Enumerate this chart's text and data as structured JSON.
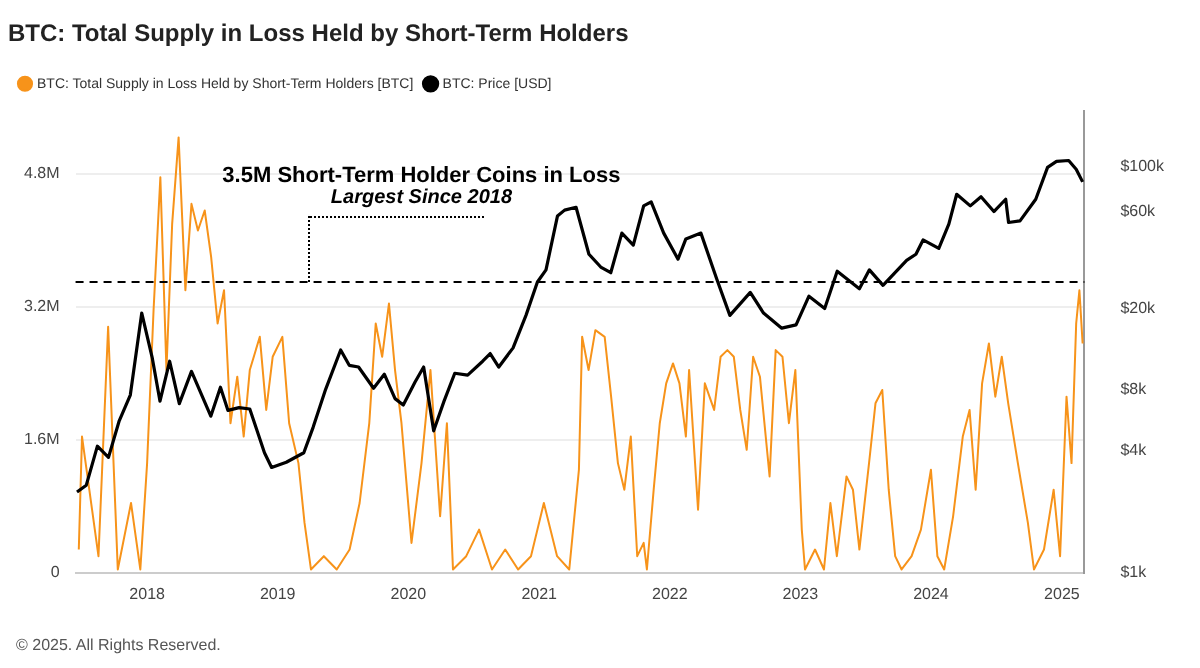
{
  "chart_data": {
    "type": "line",
    "title": "BTC: Total Supply in Loss Held by Short-Term Holders",
    "legend": "top left",
    "grid": "y",
    "log": "y2",
    "marker": "none",
    "line_style": "solid",
    "xlim": [
      "2017-06-15",
      "2025-03-05"
    ],
    "xticks": [
      "2018",
      "2019",
      "2020",
      "2021",
      "2022",
      "2023",
      "2024",
      "2025"
    ],
    "ylim": [
      0,
      5560000
    ],
    "yticks": [
      0,
      {
        "value": 1600000,
        "label": "1.6M"
      },
      {
        "value": 3200000,
        "label": "3.2M"
      },
      {
        "value": 4800000,
        "label": "4.8M"
      }
    ],
    "y2lim": [
      1000,
      188000
    ],
    "y2ticks": [
      {
        "value": 1000,
        "label": "$1k"
      },
      {
        "value": 4000,
        "label": "$4k"
      },
      {
        "value": 8000,
        "label": "$8k"
      },
      {
        "value": 20000,
        "label": "$20k"
      },
      {
        "value": 60000,
        "label": "$60k"
      },
      {
        "value": 100000,
        "label": "$100k"
      }
    ],
    "ref_lines": [
      {
        "axis": "y",
        "value": 3500000,
        "color": "#000000",
        "line_style": "dashed"
      }
    ],
    "annotations": [
      {
        "text": "3.5M Short-Term Holder Coins in Loss",
        "x": "2019-03-25",
        "y": 3500000
      },
      "Largest Since 2018",
      "© 2025. All Rights Reserved."
    ],
    "series": [
      {
        "name": "BTC: Total Supply in Loss Held by Short-Term Holders [BTC]",
        "color": "#f7931a",
        "x": [
          "2017-06-24",
          "2017-07-03",
          "2017-08-18",
          "2017-09-14",
          "2017-10-11",
          "2017-11-17",
          "2017-12-13",
          "2018-01-01",
          "2018-01-19",
          "2018-02-07",
          "2018-02-24",
          "2018-03-12",
          "2018-03-30",
          "2018-04-18",
          "2018-05-05",
          "2018-05-23",
          "2018-06-11",
          "2018-06-29",
          "2018-07-17",
          "2018-08-04",
          "2018-08-22",
          "2018-09-10",
          "2018-09-28",
          "2018-10-15",
          "2018-11-12",
          "2018-11-30",
          "2018-12-18",
          "2019-01-14",
          "2019-02-02",
          "2019-02-28",
          "2019-03-17",
          "2019-04-04",
          "2019-05-10",
          "2019-06-15",
          "2019-07-21",
          "2019-08-18",
          "2019-09-14",
          "2019-10-02",
          "2019-10-20",
          "2019-11-08",
          "2019-11-25",
          "2019-12-13",
          "2020-01-10",
          "2020-02-07",
          "2020-03-03",
          "2020-03-30",
          "2020-04-18",
          "2020-05-05",
          "2020-06-11",
          "2020-07-17",
          "2020-08-22",
          "2020-09-28",
          "2020-11-03",
          "2020-12-09",
          "2021-01-14",
          "2021-02-20",
          "2021-03-26",
          "2021-04-22",
          "2021-05-01",
          "2021-05-19",
          "2021-06-07",
          "2021-07-03",
          "2021-07-21",
          "2021-08-09",
          "2021-08-27",
          "2021-09-14",
          "2021-10-02",
          "2021-10-20",
          "2021-10-29",
          "2021-11-17",
          "2021-12-04",
          "2021-12-22",
          "2022-01-10",
          "2022-01-28",
          "2022-02-15",
          "2022-02-24",
          "2022-03-21",
          "2022-04-09",
          "2022-05-05",
          "2022-05-23",
          "2022-06-11",
          "2022-06-29",
          "2022-07-17",
          "2022-08-04",
          "2022-08-22",
          "2022-09-10",
          "2022-10-07",
          "2022-10-24",
          "2022-11-12",
          "2022-11-30",
          "2022-12-18",
          "2023-01-05",
          "2023-01-14",
          "2023-02-11",
          "2023-03-08",
          "2023-03-26",
          "2023-04-13",
          "2023-05-10",
          "2023-05-28",
          "2023-06-15",
          "2023-07-12",
          "2023-07-30",
          "2023-08-18",
          "2023-09-05",
          "2023-09-23",
          "2023-10-11",
          "2023-11-08",
          "2023-12-04",
          "2024-01-01",
          "2024-01-19",
          "2024-02-07",
          "2024-03-03",
          "2024-03-30",
          "2024-04-18",
          "2024-05-05",
          "2024-05-23",
          "2024-06-11",
          "2024-06-29",
          "2024-07-17",
          "2024-08-04",
          "2024-08-31",
          "2024-09-28",
          "2024-10-15",
          "2024-11-12",
          "2024-12-09",
          "2024-12-27",
          "2025-01-14",
          "2025-01-28",
          "2025-02-10",
          "2025-02-19",
          "2025-02-28"
        ],
        "values": [
          280000,
          1640000,
          200000,
          2960000,
          40000,
          840000,
          40000,
          1320000,
          3160000,
          4760000,
          2440000,
          4200000,
          5240000,
          3400000,
          4440000,
          4120000,
          4360000,
          3800000,
          3000000,
          3400000,
          1800000,
          2360000,
          1640000,
          2440000,
          2840000,
          1960000,
          2600000,
          2840000,
          1800000,
          1320000,
          600000,
          40000,
          200000,
          40000,
          280000,
          840000,
          1800000,
          3000000,
          2600000,
          3240000,
          2440000,
          1800000,
          360000,
          1320000,
          2440000,
          680000,
          1800000,
          40000,
          200000,
          520000,
          40000,
          280000,
          40000,
          200000,
          840000,
          200000,
          40000,
          1240000,
          2840000,
          2440000,
          2920000,
          2840000,
          2120000,
          1320000,
          1000000,
          1640000,
          200000,
          360000,
          40000,
          1000000,
          1800000,
          2280000,
          2520000,
          2280000,
          1640000,
          2440000,
          760000,
          2280000,
          1960000,
          2600000,
          2680000,
          2600000,
          1960000,
          1480000,
          2600000,
          2360000,
          1160000,
          2680000,
          2600000,
          1800000,
          2440000,
          520000,
          40000,
          280000,
          40000,
          840000,
          200000,
          1160000,
          1000000,
          280000,
          1320000,
          2040000,
          2200000,
          1000000,
          200000,
          40000,
          200000,
          520000,
          1240000,
          200000,
          40000,
          680000,
          1640000,
          1960000,
          1000000,
          2280000,
          2760000,
          2120000,
          2600000,
          2040000,
          1320000,
          600000,
          40000,
          280000,
          1000000,
          200000,
          2120000,
          1320000,
          3000000,
          3400000,
          2760000
        ]
      },
      {
        "name": "BTC: Price [USD]",
        "color": "#000000",
        "axis": "y2",
        "x": [
          "2017-06-19",
          "2017-07-15",
          "2017-08-15",
          "2017-09-15",
          "2017-10-15",
          "2017-11-15",
          "2017-12-17",
          "2018-01-15",
          "2018-02-06",
          "2018-03-05",
          "2018-04-01",
          "2018-05-05",
          "2018-06-28",
          "2018-07-25",
          "2018-08-15",
          "2018-09-15",
          "2018-10-15",
          "2018-11-25",
          "2018-12-15",
          "2019-01-25",
          "2019-03-15",
          "2019-04-10",
          "2019-05-15",
          "2019-06-26",
          "2019-07-20",
          "2019-08-15",
          "2019-09-26",
          "2019-10-26",
          "2019-11-25",
          "2019-12-18",
          "2020-01-20",
          "2020-02-13",
          "2020-03-12",
          "2020-04-10",
          "2020-05-10",
          "2020-06-15",
          "2020-07-27",
          "2020-08-17",
          "2020-09-10",
          "2020-10-20",
          "2020-11-25",
          "2020-12-27",
          "2021-01-20",
          "2021-02-21",
          "2021-03-13",
          "2021-04-14",
          "2021-05-20",
          "2021-06-22",
          "2021-07-20",
          "2021-08-20",
          "2021-09-21",
          "2021-10-20",
          "2021-11-10",
          "2021-12-15",
          "2022-01-24",
          "2022-02-15",
          "2022-03-29",
          "2022-05-12",
          "2022-06-18",
          "2022-08-14",
          "2022-09-20",
          "2022-11-10",
          "2022-12-20",
          "2023-01-25",
          "2023-03-10",
          "2023-04-14",
          "2023-06-15",
          "2023-07-13",
          "2023-08-20",
          "2023-10-25",
          "2023-11-20",
          "2023-12-10",
          "2024-01-23",
          "2024-02-20",
          "2024-03-13",
          "2024-04-20",
          "2024-05-20",
          "2024-06-25",
          "2024-07-28",
          "2024-08-05",
          "2024-09-06",
          "2024-10-20",
          "2024-11-22",
          "2024-12-17",
          "2025-01-20",
          "2025-02-10",
          "2025-02-28"
        ],
        "values": [
          2500,
          2700,
          4200,
          3700,
          5600,
          7500,
          19000,
          11500,
          7000,
          11000,
          6800,
          9800,
          5900,
          8200,
          6300,
          6500,
          6400,
          3900,
          3300,
          3500,
          3900,
          5200,
          8000,
          12500,
          10500,
          10300,
          8100,
          9500,
          7200,
          6700,
          8700,
          10300,
          5000,
          7000,
          9600,
          9400,
          11000,
          12000,
          10300,
          12800,
          18500,
          27000,
          31000,
          57000,
          61000,
          63000,
          37000,
          32000,
          30000,
          47000,
          41000,
          64000,
          67000,
          47000,
          35000,
          44000,
          47000,
          28000,
          18500,
          24000,
          19000,
          16000,
          16600,
          23000,
          20000,
          30500,
          25000,
          31000,
          26000,
          34500,
          37000,
          43500,
          39500,
          52000,
          73000,
          64000,
          71000,
          60000,
          69000,
          53000,
          54000,
          69000,
          99000,
          106000,
          107000,
          97000,
          84000
        ]
      }
    ]
  }
}
